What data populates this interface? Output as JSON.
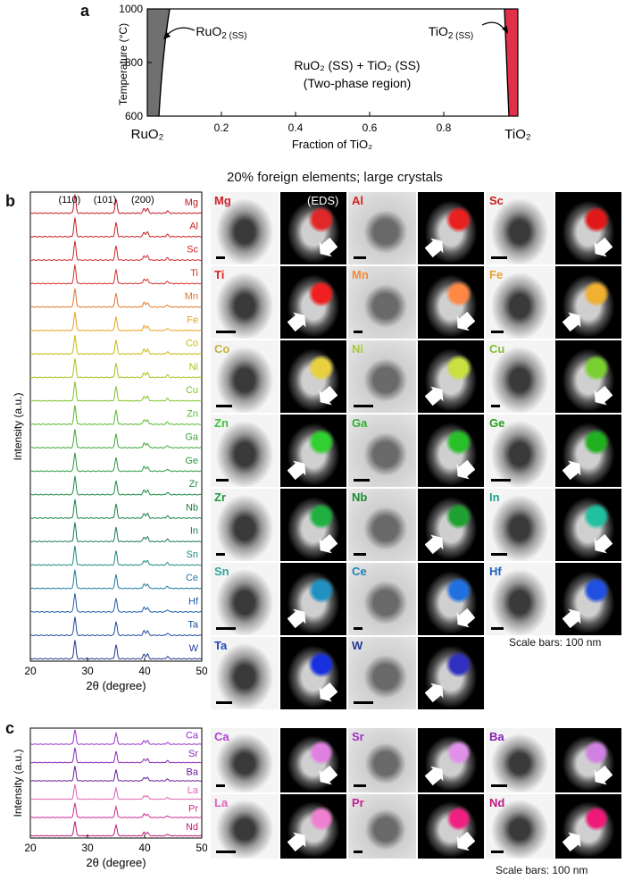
{
  "panels": {
    "a": "a",
    "b": "b",
    "c": "c"
  },
  "phase_diagram": {
    "ylabel": "Temperature (°C)",
    "xlabel": "Fraction of TiO₂",
    "yticks": [
      "1000",
      "800",
      "600"
    ],
    "xticks": [
      "0.2",
      "0.4",
      "0.6",
      "0.8"
    ],
    "left_end": "RuO₂",
    "right_end": "TiO₂",
    "left_phase_main": "RuO",
    "left_phase_sub": "2 (SS)",
    "right_phase_main": "TiO",
    "right_phase_sub": "2 (SS)",
    "center_line1": "RuO₂ (SS) + TiO₂ (SS)",
    "center_line2": "(Two-phase region)",
    "left_color": "#707070",
    "right_color": "#e0304a"
  },
  "xrd_b": {
    "ylabel": "Intensity (a.u.)",
    "xlabel": "2θ (degree)",
    "xticks": [
      "20",
      "30",
      "40",
      "50"
    ],
    "peak_labels": [
      "(110)",
      "(101)",
      "(200)"
    ],
    "elements": [
      "Mg",
      "Al",
      "Sc",
      "Ti",
      "Mn",
      "Fe",
      "Co",
      "Ni",
      "Cu",
      "Zn",
      "Ga",
      "Ge",
      "Zr",
      "Nb",
      "In",
      "Sn",
      "Ce",
      "Hf",
      "Ta",
      "W"
    ],
    "colors": [
      "#c0141e",
      "#c81e1e",
      "#d12828",
      "#d4302a",
      "#e0772a",
      "#e8a020",
      "#c9b80a",
      "#a8c41a",
      "#7fc428",
      "#58b82e",
      "#3ea63a",
      "#2c9a40",
      "#1f8c44",
      "#1a8048",
      "#1a7a55",
      "#1d8a80",
      "#1f7aa0",
      "#2060a8",
      "#2048a0",
      "#25388c"
    ]
  },
  "tem_b": {
    "heading": "20% foreign elements; large crystals",
    "eds_label": "(EDS)",
    "tiles": [
      {
        "el": "Mg",
        "color": "#d01e2a",
        "eds": "#e02828"
      },
      {
        "el": "Al",
        "color": "#d82020",
        "eds": "#e82020"
      },
      {
        "el": "Sc",
        "color": "#c81a1a",
        "eds": "#e01818"
      },
      {
        "el": "Ti",
        "color": "#e02020",
        "eds": "#f02020"
      },
      {
        "el": "Mn",
        "color": "#f08a40",
        "eds": "#ff8844"
      },
      {
        "el": "Fe",
        "color": "#e8a030",
        "eds": "#f0b030"
      },
      {
        "el": "Co",
        "color": "#c8b040",
        "eds": "#e8d040"
      },
      {
        "el": "Ni",
        "color": "#a8c83a",
        "eds": "#c8e040"
      },
      {
        "el": "Cu",
        "color": "#80c030",
        "eds": "#7ad030"
      },
      {
        "el": "Zn",
        "color": "#40c040",
        "eds": "#30d030"
      },
      {
        "el": "Ga",
        "color": "#30b030",
        "eds": "#28c028"
      },
      {
        "el": "Ge",
        "color": "#20a020",
        "eds": "#20b020"
      },
      {
        "el": "Zr",
        "color": "#1e9a3a",
        "eds": "#20b040"
      },
      {
        "el": "Nb",
        "color": "#1a8a30",
        "eds": "#20a030"
      },
      {
        "el": "In",
        "color": "#20a090",
        "eds": "#20c0a0"
      },
      {
        "el": "Sn",
        "color": "#30a8a0",
        "eds": "#2090c0"
      },
      {
        "el": "Ce",
        "color": "#2080b8",
        "eds": "#2070e0"
      },
      {
        "el": "Hf",
        "color": "#2060c0",
        "eds": "#2050e0"
      },
      {
        "el": "Ta",
        "color": "#2048b8",
        "eds": "#1830e0"
      },
      {
        "el": "W",
        "color": "#283890",
        "eds": "#3030c0"
      }
    ],
    "scale_note": "Scale bars: 100 nm"
  },
  "xrd_c": {
    "ylabel": "Intensity (a.u.)",
    "xlabel": "2θ (degree)",
    "xticks": [
      "20",
      "30",
      "40",
      "50"
    ],
    "elements": [
      "Ca",
      "Sr",
      "Ba",
      "La",
      "Pr",
      "Nd"
    ],
    "colors": [
      "#9a30c8",
      "#8a28b8",
      "#6a1c9a",
      "#e060b0",
      "#d02890",
      "#c01878"
    ]
  },
  "tem_c": {
    "tiles": [
      {
        "el": "Ca",
        "color": "#b040d0",
        "eds": "#e080e0"
      },
      {
        "el": "Sr",
        "color": "#a030c8",
        "eds": "#e090e8"
      },
      {
        "el": "Ba",
        "color": "#8020b0",
        "eds": "#d080e0"
      },
      {
        "el": "La",
        "color": "#e060c0",
        "eds": "#f080d0"
      },
      {
        "el": "Pr",
        "color": "#c02090",
        "eds": "#f02080"
      },
      {
        "el": "Nd",
        "color": "#c01880",
        "eds": "#f01878"
      }
    ],
    "scale_note": "Scale bars: 100 nm"
  }
}
